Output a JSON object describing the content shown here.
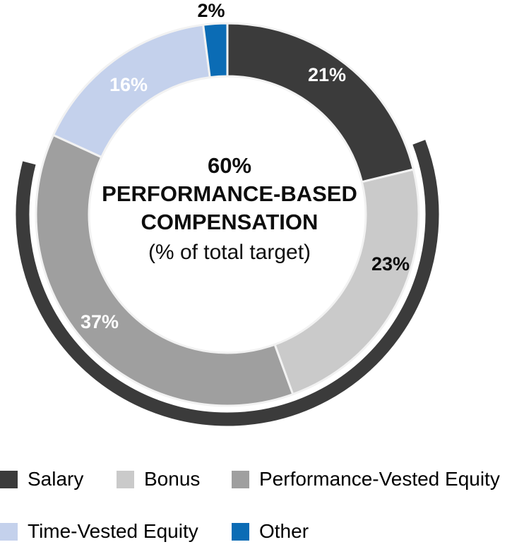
{
  "chart_data": {
    "type": "pie",
    "subtype": "donut",
    "title": "60% PERFORMANCE-BASED COMPENSATION (% of total target)",
    "center_label": {
      "line1": "60%",
      "line2": "PERFORMANCE-BASED",
      "line3": "COMPENSATION",
      "line4": "(% of total target)"
    },
    "segments": [
      {
        "label": "Salary",
        "value": 21,
        "display": "21%",
        "color": "#3B3B3B",
        "label_color": "#FFFFFF"
      },
      {
        "label": "Bonus",
        "value": 23,
        "display": "23%",
        "color": "#CACACA",
        "label_color": "#0A0A0A"
      },
      {
        "label": "Performance-Vested Equity",
        "value": 37,
        "display": "37%",
        "color": "#9F9F9F",
        "label_color": "#FFFFFF"
      },
      {
        "label": "Time-Vested Equity",
        "value": 16,
        "display": "16%",
        "color": "#C4D1EC",
        "label_color": "#FFFFFF"
      },
      {
        "label": "Other",
        "value": 2,
        "display": "2%",
        "color": "#0B6CB5",
        "label_color": "#0A0A0A"
      }
    ],
    "highlight_arc": {
      "meaning": "performance-based portion (Bonus + Performance-Vested Equity)",
      "covers": [
        "Bonus",
        "Performance-Vested Equity"
      ],
      "total_pct_display": "60%",
      "color": "#3B3B3B"
    },
    "legend_rows": [
      [
        "Salary",
        "Bonus",
        "Performance-Vested Equity"
      ],
      [
        "Time-Vested Equity",
        "Other"
      ]
    ],
    "layout_hints": {
      "legend_position": "bottom",
      "labels_on_slices": true,
      "start_angle_deg": 0,
      "grid": false
    }
  }
}
